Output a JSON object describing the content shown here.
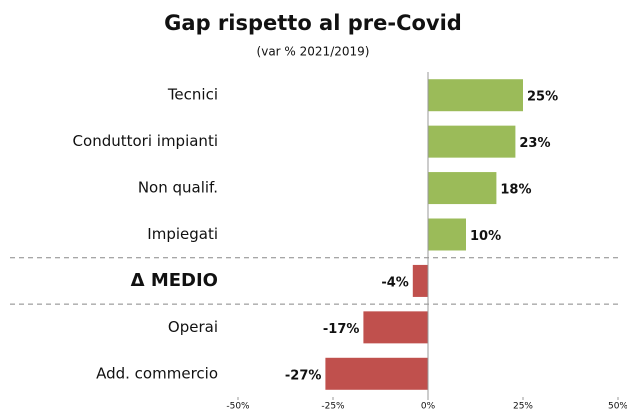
{
  "chart_data": {
    "type": "hbar",
    "title": "Gap rispetto al pre-Covid",
    "subtitle": "(var % 2021/2019)",
    "categories": [
      "Tecnici",
      "Conduttori impianti",
      "Non qualif.",
      "Impiegati",
      "Δ MEDIO",
      "Operai",
      "Add. commercio"
    ],
    "values": [
      25,
      23,
      18,
      10,
      -4,
      -17,
      -27
    ],
    "value_labels": [
      "25%",
      "23%",
      "18%",
      "10%",
      "-4%",
      "-17%",
      "-27%"
    ],
    "colors": [
      "#9bbb59",
      "#9bbb59",
      "#9bbb59",
      "#9bbb59",
      "#c0504d",
      "#c0504d",
      "#c0504d"
    ],
    "xlim": [
      -50,
      50
    ],
    "xticks": [
      {
        "value": -50,
        "label": "-50%"
      },
      {
        "value": -25,
        "label": "-25%"
      },
      {
        "value": 0,
        "label": "0%"
      },
      {
        "value": 25,
        "label": "25%"
      },
      {
        "value": 50,
        "label": "50%"
      }
    ]
  }
}
